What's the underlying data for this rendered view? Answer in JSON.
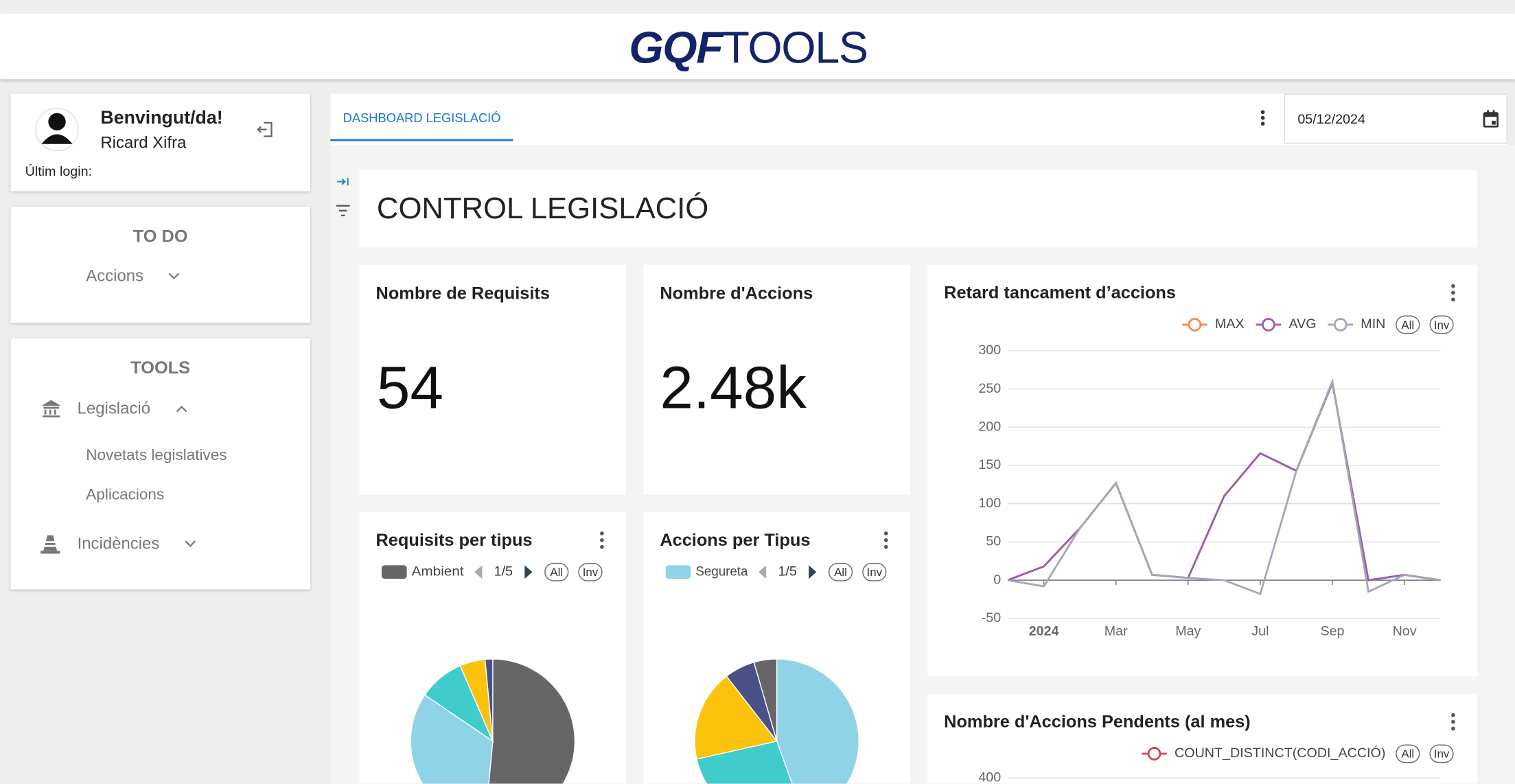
{
  "header": {
    "logo_brand": "GQF",
    "logo_suffix": "TOOLS"
  },
  "user": {
    "greeting": "Benvingut/da!",
    "name": "Ricard Xifra",
    "last_login": "Últim login:"
  },
  "todo": {
    "title": "TO DO",
    "items": [
      "Accions"
    ]
  },
  "tools": {
    "title": "TOOLS",
    "groups": [
      {
        "label": "Legislació",
        "items": [
          "Novetats legislatives",
          "Aplicacions"
        ]
      },
      {
        "label": "Incidències"
      }
    ]
  },
  "tabs": {
    "active": "DASHBOARD LEGISLACIÓ",
    "date": "05/12/2024"
  },
  "dashboard": {
    "title": "CONTROL LEGISLACIÓ",
    "kpis": [
      {
        "title": "Nombre de Requisits",
        "value": 54
      },
      {
        "title": "Nombre d'Accions",
        "value": 2480,
        "value_label": "2.48k"
      }
    ]
  },
  "chart_data": [
    {
      "type": "line",
      "title": "Retard tancament d’accions",
      "legend_buttons": [
        "All",
        "Inv"
      ],
      "categories": [
        null,
        "2024",
        null,
        "Mar",
        null,
        "May",
        null,
        "Jul",
        null,
        "Sep",
        null,
        "Nov",
        null
      ],
      "series": [
        {
          "name": "MAX",
          "color": "#f28d49",
          "values": [
            0,
            18,
            68,
            127,
            7,
            3,
            110,
            166,
            143,
            258,
            0,
            7,
            0
          ]
        },
        {
          "name": "AVG",
          "color": "#9c5bb0",
          "values": [
            0,
            18,
            68,
            127,
            7,
            3,
            110,
            166,
            143,
            258,
            0,
            7,
            0
          ]
        },
        {
          "name": "MIN",
          "color": "#a3a6b9",
          "values": [
            0,
            -8,
            68,
            127,
            7,
            3,
            0,
            -18,
            143,
            260,
            -15,
            7,
            0
          ]
        }
      ],
      "ylim": [
        -50,
        300
      ],
      "yticks": [
        -50,
        0,
        50,
        100,
        150,
        200,
        250,
        300
      ],
      "grid": true
    },
    {
      "type": "pie",
      "title": "Requisits per tipus",
      "legend_page": "1/5",
      "legend_buttons": [
        "All",
        "Inv"
      ],
      "categories": [
        "Ambient",
        null,
        null,
        null,
        null
      ],
      "values": [
        51.5,
        33,
        9,
        5,
        1.5
      ],
      "colors": [
        "#666666",
        "#91d3e6",
        "#3fcccb",
        "#fbc30c",
        "#4a5189"
      ]
    },
    {
      "type": "pie",
      "title": "Accions per Tipus",
      "legend_page": "1/5",
      "legend_buttons": [
        "All",
        "Inv"
      ],
      "categories": [
        "Segureta",
        null,
        null,
        null,
        null
      ],
      "values": [
        44.5,
        27,
        18,
        6,
        4.5
      ],
      "colors": [
        "#91d3e6",
        "#3fcccb",
        "#fbc30c",
        "#4a5189",
        "#666666"
      ]
    },
    {
      "type": "line",
      "title": "Nombre d'Accions Pendents (al mes)",
      "legend_buttons": [
        "All",
        "Inv"
      ],
      "series": [
        {
          "name": "COUNT_DISTINCT(CODI_ACCIÓ)",
          "color": "#d9434f"
        }
      ],
      "yticks": [
        400
      ],
      "grid": true
    }
  ]
}
